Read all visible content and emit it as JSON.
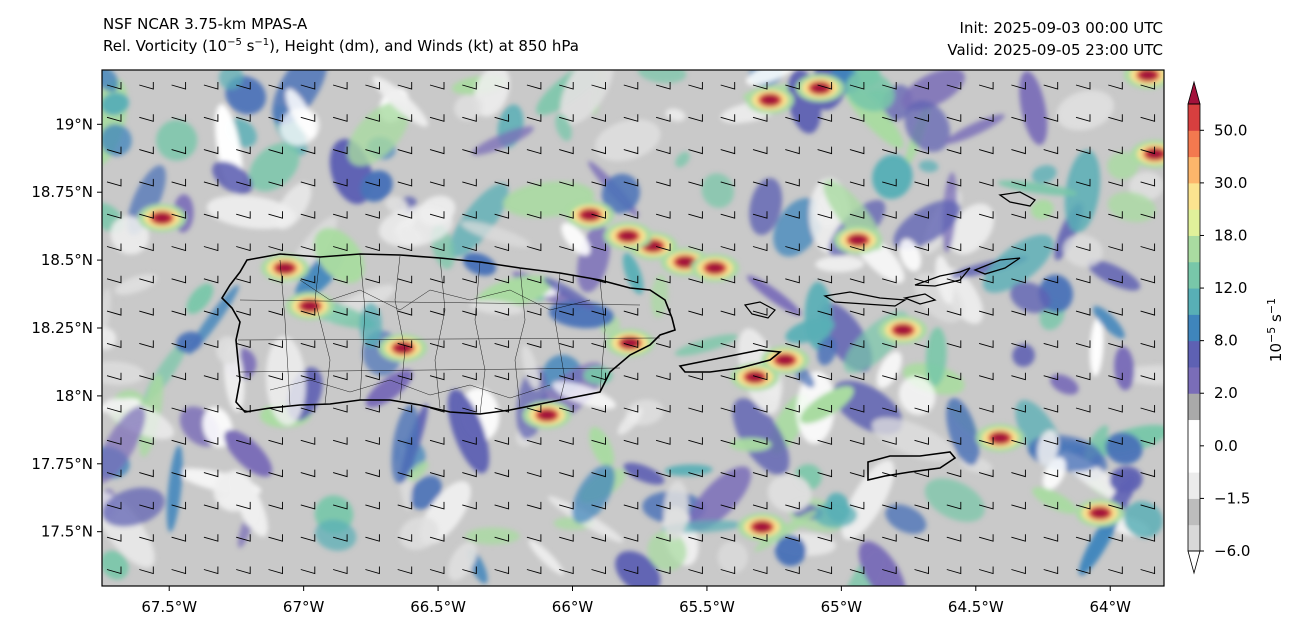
{
  "title": {
    "line1": "NSF NCAR 3.75-km MPAS-A",
    "line2_prefix": "Rel. Vorticity (10",
    "line2_exp1": "−5",
    "line2_mid1": " s",
    "line2_exp2": "−1",
    "line2_suffix": "), Height (dm), and Winds (kt) at 850 hPa"
  },
  "init_time": "Init: 2025-09-03 00:00 UTC",
  "valid_time": "Valid: 2025-09-05 23:00 UTC",
  "map": {
    "lon_range": [
      -67.75,
      -63.8
    ],
    "lat_range": [
      17.3,
      19.2
    ],
    "x_ticks": [
      {
        "value": -67.5,
        "label": "67.5°W"
      },
      {
        "value": -67.0,
        "label": "67°W"
      },
      {
        "value": -66.5,
        "label": "66.5°W"
      },
      {
        "value": -66.0,
        "label": "66°W"
      },
      {
        "value": -65.5,
        "label": "65.5°W"
      },
      {
        "value": -65.0,
        "label": "65°W"
      },
      {
        "value": -64.5,
        "label": "64.5°W"
      },
      {
        "value": -64.0,
        "label": "64°W"
      }
    ],
    "y_ticks": [
      {
        "value": 19.0,
        "label": "19°N"
      },
      {
        "value": 18.75,
        "label": "18.75°N"
      },
      {
        "value": 18.5,
        "label": "18.5°N"
      },
      {
        "value": 18.25,
        "label": "18.25°N"
      },
      {
        "value": 18.0,
        "label": "18°N"
      },
      {
        "value": 17.75,
        "label": "17.75°N"
      },
      {
        "value": 17.5,
        "label": "17.5°N"
      }
    ],
    "wind_barb": "from-west-northwest"
  },
  "colorbar": {
    "label_base": "10",
    "label_exp": "−5",
    "label_unit": " s",
    "label_unit_exp": "−1",
    "levels": [
      {
        "label": "−6.0",
        "color": "#d9d9d9"
      },
      {
        "label": "",
        "color": "#bdbdbd"
      },
      {
        "label": "−1.5",
        "color": "#ececec"
      },
      {
        "label": "",
        "color": "#ffffff"
      },
      {
        "label": "0.0",
        "color": "#ffffff"
      },
      {
        "label": "",
        "color": "#a9a9a9"
      },
      {
        "label": "2.0",
        "color": "#7a6db8"
      },
      {
        "label": "",
        "color": "#5e61b3"
      },
      {
        "label": "8.0",
        "color": "#3f85bc"
      },
      {
        "label": "",
        "color": "#58afb6"
      },
      {
        "label": "12.0",
        "color": "#78c7a9"
      },
      {
        "label": "",
        "color": "#a9dba1"
      },
      {
        "label": "18.0",
        "color": "#e0f19a"
      },
      {
        "label": "",
        "color": "#fbe38f"
      },
      {
        "label": "30.0",
        "color": "#fcb66b"
      },
      {
        "label": "",
        "color": "#f3794f"
      },
      {
        "label": "50.0",
        "color": "#d73f3f"
      }
    ],
    "over_color": "#a3123b",
    "under_color": "#ffffff"
  }
}
